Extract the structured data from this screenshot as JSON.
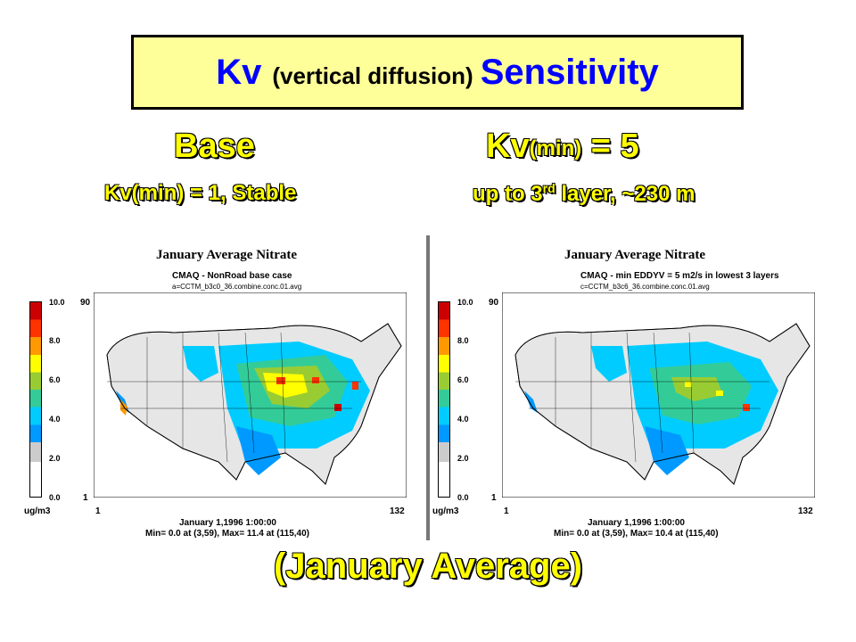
{
  "title": {
    "main": "Kv",
    "paren": "(vertical diffusion)",
    "tail": "Sensitivity"
  },
  "left_heading": {
    "title": "Base",
    "subtitle": "Kv(min) = 1, Stable"
  },
  "right_heading": {
    "title_main": "Kv",
    "title_sub": "(min)",
    "title_rest": " = 5",
    "subtitle_pre": "up to 3",
    "subtitle_sup": "rd",
    "subtitle_post": " layer, ~230 m"
  },
  "colors": {
    "title_bg": "#ffff99",
    "title_text": "#0000ff",
    "heading_text": "#ffff00"
  },
  "colorbar_labels": [
    "10.0",
    "8.0",
    "6.0",
    "4.0",
    "2.0",
    "0.0"
  ],
  "unit_label": "ug/m3",
  "axis": {
    "y_top": "90",
    "y_bottom": "1",
    "x_left": "1",
    "x_right": "132"
  },
  "left_panel": {
    "title": "January Average Nitrate",
    "case": "CMAQ - NonRoad base case",
    "file": "a=CCTM_b3c0_36.combine.conc.01.avg",
    "date": "January 1,1996 1:00:00",
    "stats": "Min=   0.0 at (3,59), Max=   11.4 at (115,40)"
  },
  "right_panel": {
    "title": "January Average Nitrate",
    "case": "CMAQ - min EDDYV = 5 m2/s in lowest 3 layers",
    "file": "c=CCTM_b3c6_36.combine.conc.01.avg",
    "date": "January 1,1996 1:00:00",
    "stats": "Min=   0.0 at (3,59), Max=   10.4 at (115,40)"
  },
  "bottom_caption": "(January Average)"
}
